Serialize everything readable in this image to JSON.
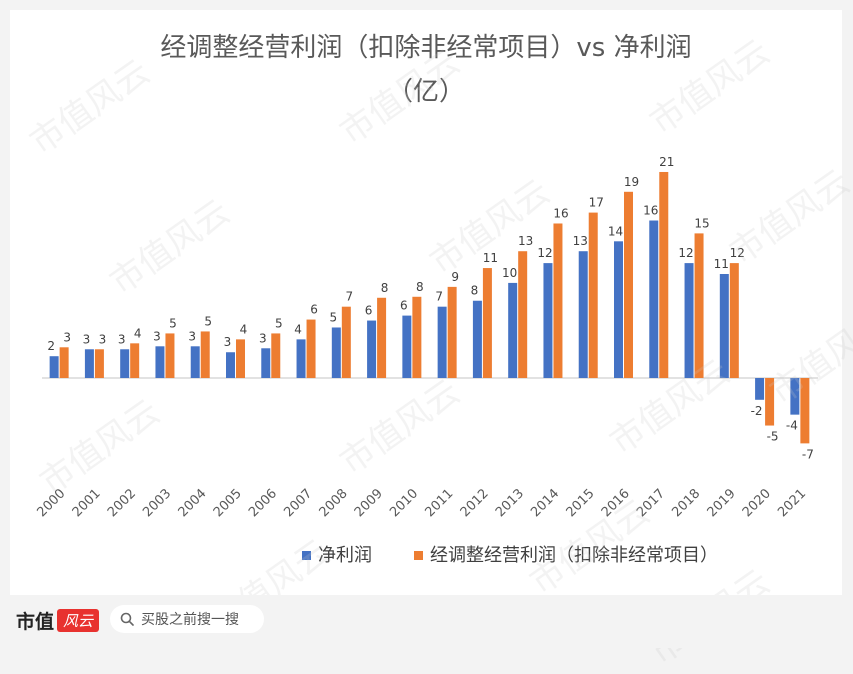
{
  "chart_data": {
    "type": "bar",
    "title_lines": [
      "经调整经营利润（扣除非经常项目）vs 净利润",
      "（亿）"
    ],
    "categories": [
      "2000",
      "2001",
      "2002",
      "2003",
      "2004",
      "2005",
      "2006",
      "2007",
      "2008",
      "2009",
      "2010",
      "2011",
      "2012",
      "2013",
      "2014",
      "2015",
      "2016",
      "2017",
      "2018",
      "2019",
      "2020",
      "2021"
    ],
    "series": [
      {
        "name": "净利润",
        "color": "#4472c4",
        "values": [
          2.2,
          2.9,
          2.9,
          3.2,
          3.2,
          2.6,
          3.0,
          3.9,
          5.1,
          5.8,
          6.3,
          7.2,
          7.8,
          9.6,
          11.6,
          12.8,
          13.8,
          15.9,
          11.6,
          10.5,
          -2.2,
          -3.7
        ]
      },
      {
        "name": "经调整经营利润（扣除非经常项目）",
        "color": "#ed7d31",
        "values": [
          3.1,
          2.9,
          3.5,
          4.5,
          4.7,
          3.9,
          4.5,
          5.9,
          7.2,
          8.1,
          8.2,
          9.2,
          11.1,
          12.8,
          15.6,
          16.7,
          18.8,
          20.8,
          14.6,
          11.6,
          -4.8,
          -6.6
        ]
      }
    ],
    "value_labels": [
      [
        "2",
        "3",
        "3",
        "3",
        "3",
        "3",
        "3",
        "4",
        "5",
        "6",
        "6",
        "7",
        "8",
        "10",
        "12",
        "13",
        "14",
        "16",
        "12",
        "11",
        "-2",
        "-4"
      ],
      [
        "3",
        "3",
        "4",
        "5",
        "5",
        "4",
        "5",
        "6",
        "7",
        "8",
        "8",
        "9",
        "11",
        "13",
        "16",
        "17",
        "19",
        "21",
        "15",
        "12",
        "-5",
        "-7"
      ]
    ],
    "xlabel": "",
    "ylabel": "",
    "ylim": [
      -7,
      21
    ],
    "grid": false,
    "legend_position": "bottom"
  },
  "footer": {
    "logo_text": "市值",
    "logo_badge": "风云",
    "search_placeholder": "买股之前搜一搜"
  },
  "watermark_text": "市值风云",
  "colors": {
    "bar1": "#4472c4",
    "bar2": "#ed7d31",
    "axis": "#d9d9d9",
    "label": "#404040"
  }
}
